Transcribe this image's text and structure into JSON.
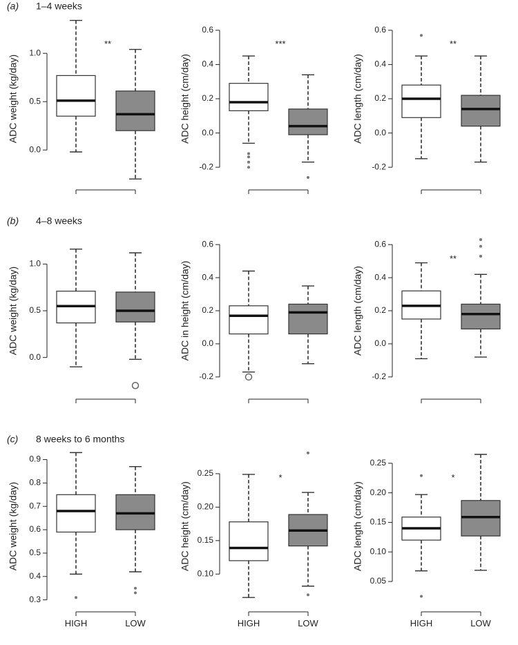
{
  "chart_data": [
    {
      "row_id": "(a)",
      "row_title": "1–4 weeks",
      "type": "box",
      "ylabel": "ADC weight (kg/day)",
      "ylim": [
        -0.32,
        1.38
      ],
      "yticks": [
        0.0,
        0.5,
        1.0
      ],
      "significance": "**",
      "boxes": [
        {
          "group": "HIGH",
          "fill": "#ffffff",
          "whisker_low": -0.02,
          "q1": 0.35,
          "median": 0.51,
          "q3": 0.77,
          "whisker_high": 1.34,
          "outliers": []
        },
        {
          "group": "LOW",
          "fill": "#8a8a8a",
          "whisker_low": -0.3,
          "q1": 0.2,
          "median": 0.37,
          "q3": 0.61,
          "whisker_high": 1.04,
          "outliers": []
        }
      ]
    },
    {
      "type": "box",
      "ylabel": "ADC height (cm/day)",
      "ylim": [
        -0.28,
        0.68
      ],
      "yticks": [
        -0.2,
        0.0,
        0.2,
        0.4,
        0.6
      ],
      "significance": "***",
      "boxes": [
        {
          "group": "HIGH",
          "fill": "#ffffff",
          "whisker_low": -0.06,
          "q1": 0.13,
          "median": 0.18,
          "q3": 0.29,
          "whisker_high": 0.45,
          "outliers": [
            -0.12,
            -0.14,
            -0.17,
            -0.2
          ]
        },
        {
          "group": "LOW",
          "fill": "#8a8a8a",
          "whisker_low": -0.17,
          "q1": -0.01,
          "median": 0.04,
          "q3": 0.14,
          "whisker_high": 0.34,
          "outliers": [
            -0.26
          ]
        }
      ]
    },
    {
      "type": "box",
      "ylabel": "ADC length (cm/day)",
      "ylim": [
        -0.28,
        0.68
      ],
      "yticks": [
        -0.2,
        0.0,
        0.2,
        0.4,
        0.6
      ],
      "significance": "**",
      "boxes": [
        {
          "group": "HIGH",
          "fill": "#ffffff",
          "whisker_low": -0.15,
          "q1": 0.09,
          "median": 0.2,
          "q3": 0.28,
          "whisker_high": 0.45,
          "outliers": [
            0.57
          ]
        },
        {
          "group": "LOW",
          "fill": "#8a8a8a",
          "whisker_low": -0.17,
          "q1": 0.04,
          "median": 0.14,
          "q3": 0.22,
          "whisker_high": 0.45,
          "outliers": []
        }
      ]
    },
    {
      "row_id": "(b)",
      "row_title": "4–8 weeks",
      "type": "box",
      "ylabel": "ADC weight (kg/day)",
      "ylim": [
        -0.35,
        1.35
      ],
      "yticks": [
        0.0,
        0.5,
        1.0
      ],
      "significance": "",
      "boxes": [
        {
          "group": "HIGH",
          "fill": "#ffffff",
          "whisker_low": -0.1,
          "q1": 0.37,
          "median": 0.55,
          "q3": 0.71,
          "whisker_high": 1.16,
          "outliers": []
        },
        {
          "group": "LOW",
          "fill": "#8a8a8a",
          "whisker_low": -0.02,
          "q1": 0.38,
          "median": 0.5,
          "q3": 0.7,
          "whisker_high": 1.12,
          "outliers": [
            -0.3
          ]
        }
      ]
    },
    {
      "type": "box",
      "ylabel": "ADC in height (cm/day)",
      "ylim": [
        -0.28,
        0.68
      ],
      "yticks": [
        -0.2,
        0.0,
        0.2,
        0.4,
        0.6
      ],
      "significance": "",
      "boxes": [
        {
          "group": "HIGH",
          "fill": "#ffffff",
          "whisker_low": -0.17,
          "q1": 0.06,
          "median": 0.17,
          "q3": 0.23,
          "whisker_high": 0.44,
          "outliers": [
            -0.2
          ]
        },
        {
          "group": "LOW",
          "fill": "#8a8a8a",
          "whisker_low": -0.12,
          "q1": 0.06,
          "median": 0.19,
          "q3": 0.24,
          "whisker_high": 0.35,
          "outliers": []
        }
      ]
    },
    {
      "type": "box",
      "ylabel": "ADC length (cm/day)",
      "ylim": [
        -0.28,
        0.68
      ],
      "yticks": [
        -0.2,
        0.0,
        0.2,
        0.4,
        0.6
      ],
      "significance": "**",
      "boxes": [
        {
          "group": "HIGH",
          "fill": "#ffffff",
          "whisker_low": -0.09,
          "q1": 0.15,
          "median": 0.23,
          "q3": 0.32,
          "whisker_high": 0.49,
          "outliers": []
        },
        {
          "group": "LOW",
          "fill": "#8a8a8a",
          "whisker_low": -0.08,
          "q1": 0.09,
          "median": 0.18,
          "q3": 0.24,
          "whisker_high": 0.42,
          "outliers": [
            0.63,
            0.59,
            0.53
          ]
        }
      ]
    },
    {
      "row_id": "(c)",
      "row_title": "8 weeks to 6 months",
      "type": "box",
      "ylabel": "ADC weight (kg/day)",
      "ylim": [
        0.29,
        0.94
      ],
      "yticks": [
        0.3,
        0.4,
        0.5,
        0.6,
        0.7,
        0.8,
        0.9
      ],
      "significance": "",
      "boxes": [
        {
          "group": "HIGH",
          "fill": "#ffffff",
          "whisker_low": 0.41,
          "q1": 0.59,
          "median": 0.68,
          "q3": 0.75,
          "whisker_high": 0.93,
          "outliers": [
            0.31
          ]
        },
        {
          "group": "LOW",
          "fill": "#8a8a8a",
          "whisker_low": 0.42,
          "q1": 0.6,
          "median": 0.67,
          "q3": 0.75,
          "whisker_high": 0.87,
          "outliers": [
            0.35,
            0.33
          ]
        }
      ]
    },
    {
      "type": "box",
      "ylabel": "ADC height (cm/day)",
      "ylim": [
        0.058,
        0.285
      ],
      "yticks": [
        0.1,
        0.15,
        0.2,
        0.25
      ],
      "significance": "*",
      "boxes": [
        {
          "group": "HIGH",
          "fill": "#ffffff",
          "whisker_low": 0.065,
          "q1": 0.12,
          "median": 0.139,
          "q3": 0.178,
          "whisker_high": 0.249,
          "outliers": []
        },
        {
          "group": "LOW",
          "fill": "#8a8a8a",
          "whisker_low": 0.082,
          "q1": 0.142,
          "median": 0.165,
          "q3": 0.189,
          "whisker_high": 0.222,
          "outliers": [
            0.281,
            0.069
          ]
        }
      ]
    },
    {
      "type": "box",
      "ylabel": "ADC length (cm/day)",
      "ylim": [
        0.015,
        0.272
      ],
      "yticks": [
        0.05,
        0.1,
        0.15,
        0.2,
        0.25
      ],
      "significance": "*",
      "boxes": [
        {
          "group": "HIGH",
          "fill": "#ffffff",
          "whisker_low": 0.068,
          "q1": 0.12,
          "median": 0.14,
          "q3": 0.159,
          "whisker_high": 0.197,
          "outliers": [
            0.229,
            0.025
          ]
        },
        {
          "group": "LOW",
          "fill": "#8a8a8a",
          "whisker_low": 0.069,
          "q1": 0.127,
          "median": 0.159,
          "q3": 0.187,
          "whisker_high": 0.265,
          "outliers": []
        }
      ]
    }
  ]
}
